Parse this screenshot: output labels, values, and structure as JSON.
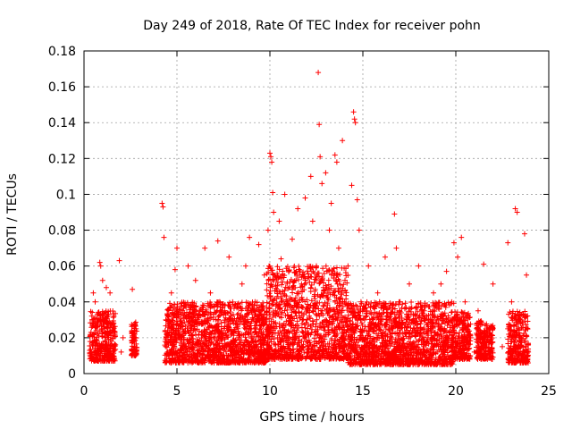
{
  "chart_data": {
    "type": "scatter",
    "title": "Day 249 of 2018, Rate Of TEC Index for receiver pohn",
    "xlabel": "GPS time / hours",
    "ylabel": "ROTI / TECUs",
    "xlim": [
      0,
      25
    ],
    "ylim": [
      0,
      0.18
    ],
    "x_ticks": [
      0,
      5,
      10,
      15,
      20,
      25
    ],
    "x_tick_labels": [
      "0",
      "5",
      "10",
      "15",
      "20",
      "25"
    ],
    "y_ticks": [
      0,
      0.02,
      0.04,
      0.06,
      0.08,
      0.1,
      0.12,
      0.14,
      0.16,
      0.18
    ],
    "y_tick_labels": [
      "0",
      "0.02",
      "0.04",
      "0.06",
      "0.08",
      "0.1",
      "0.12",
      "0.14",
      "0.16",
      "0.18"
    ],
    "grid": true,
    "marker": "+",
    "series_color": "#ff0000",
    "series": [
      {
        "name": "ROTI",
        "points": [
          [
            0.4,
            0.012
          ],
          [
            0.5,
            0.045
          ],
          [
            0.55,
            0.02
          ],
          [
            0.6,
            0.04
          ],
          [
            0.7,
            0.018
          ],
          [
            0.8,
            0.03
          ],
          [
            0.85,
            0.062
          ],
          [
            0.9,
            0.06
          ],
          [
            0.95,
            0.025
          ],
          [
            1.0,
            0.052
          ],
          [
            1.1,
            0.015
          ],
          [
            1.2,
            0.048
          ],
          [
            1.3,
            0.022
          ],
          [
            1.4,
            0.045
          ],
          [
            1.5,
            0.01
          ],
          [
            1.6,
            0.028
          ],
          [
            1.9,
            0.063
          ],
          [
            2.0,
            0.012
          ],
          [
            2.1,
            0.02
          ],
          [
            2.6,
            0.047
          ],
          [
            2.7,
            0.015
          ],
          [
            2.8,
            0.025
          ],
          [
            4.2,
            0.095
          ],
          [
            4.25,
            0.093
          ],
          [
            4.3,
            0.076
          ],
          [
            4.4,
            0.03
          ],
          [
            4.5,
            0.012
          ],
          [
            4.7,
            0.045
          ],
          [
            4.9,
            0.058
          ],
          [
            5.0,
            0.07
          ],
          [
            5.1,
            0.02
          ],
          [
            5.3,
            0.035
          ],
          [
            5.5,
            0.015
          ],
          [
            5.6,
            0.06
          ],
          [
            5.8,
            0.025
          ],
          [
            6.0,
            0.052
          ],
          [
            6.2,
            0.018
          ],
          [
            6.5,
            0.07
          ],
          [
            6.6,
            0.03
          ],
          [
            6.8,
            0.045
          ],
          [
            7.0,
            0.012
          ],
          [
            7.2,
            0.074
          ],
          [
            7.3,
            0.04
          ],
          [
            7.5,
            0.022
          ],
          [
            7.8,
            0.065
          ],
          [
            8.0,
            0.03
          ],
          [
            8.2,
            0.015
          ],
          [
            8.5,
            0.05
          ],
          [
            8.7,
            0.06
          ],
          [
            8.9,
            0.076
          ],
          [
            9.0,
            0.025
          ],
          [
            9.2,
            0.04
          ],
          [
            9.4,
            0.072
          ],
          [
            9.5,
            0.012
          ],
          [
            9.7,
            0.055
          ],
          [
            9.9,
            0.08
          ],
          [
            10.0,
            0.123
          ],
          [
            10.05,
            0.121
          ],
          [
            10.1,
            0.118
          ],
          [
            10.15,
            0.101
          ],
          [
            10.2,
            0.09
          ],
          [
            10.3,
            0.035
          ],
          [
            10.5,
            0.085
          ],
          [
            10.6,
            0.064
          ],
          [
            10.8,
            0.1
          ],
          [
            11.0,
            0.02
          ],
          [
            11.2,
            0.075
          ],
          [
            11.5,
            0.092
          ],
          [
            11.7,
            0.05
          ],
          [
            11.9,
            0.098
          ],
          [
            12.0,
            0.03
          ],
          [
            12.2,
            0.11
          ],
          [
            12.3,
            0.085
          ],
          [
            12.5,
            0.06
          ],
          [
            12.6,
            0.168
          ],
          [
            12.65,
            0.139
          ],
          [
            12.7,
            0.121
          ],
          [
            12.8,
            0.106
          ],
          [
            12.9,
            0.045
          ],
          [
            13.0,
            0.112
          ],
          [
            13.2,
            0.08
          ],
          [
            13.3,
            0.095
          ],
          [
            13.5,
            0.122
          ],
          [
            13.6,
            0.118
          ],
          [
            13.7,
            0.07
          ],
          [
            13.8,
            0.03
          ],
          [
            13.9,
            0.13
          ],
          [
            14.0,
            0.015
          ],
          [
            14.2,
            0.06
          ],
          [
            14.4,
            0.105
          ],
          [
            14.5,
            0.146
          ],
          [
            14.55,
            0.142
          ],
          [
            14.6,
            0.14
          ],
          [
            14.7,
            0.097
          ],
          [
            14.8,
            0.08
          ],
          [
            14.9,
            0.04
          ],
          [
            15.0,
            0.02
          ],
          [
            15.3,
            0.06
          ],
          [
            15.5,
            0.012
          ],
          [
            15.8,
            0.045
          ],
          [
            16.0,
            0.03
          ],
          [
            16.2,
            0.065
          ],
          [
            16.5,
            0.02
          ],
          [
            16.7,
            0.089
          ],
          [
            16.8,
            0.07
          ],
          [
            17.0,
            0.04
          ],
          [
            17.3,
            0.015
          ],
          [
            17.5,
            0.05
          ],
          [
            17.8,
            0.028
          ],
          [
            18.0,
            0.06
          ],
          [
            18.3,
            0.035
          ],
          [
            18.5,
            0.02
          ],
          [
            18.8,
            0.045
          ],
          [
            19.0,
            0.012
          ],
          [
            19.2,
            0.05
          ],
          [
            19.5,
            0.057
          ],
          [
            19.7,
            0.03
          ],
          [
            19.9,
            0.073
          ],
          [
            20.1,
            0.065
          ],
          [
            20.3,
            0.076
          ],
          [
            20.5,
            0.04
          ],
          [
            20.8,
            0.02
          ],
          [
            21.0,
            0.012
          ],
          [
            21.2,
            0.035
          ],
          [
            21.5,
            0.061
          ],
          [
            21.7,
            0.025
          ],
          [
            22.0,
            0.05
          ],
          [
            22.5,
            0.015
          ],
          [
            22.8,
            0.073
          ],
          [
            23.0,
            0.04
          ],
          [
            23.2,
            0.092
          ],
          [
            23.3,
            0.09
          ],
          [
            23.5,
            0.03
          ],
          [
            23.7,
            0.078
          ],
          [
            23.8,
            0.055
          ],
          [
            23.9,
            0.012
          ]
        ]
      }
    ],
    "dense_band": {
      "description_free": true,
      "segments": [
        {
          "x_from": 0.3,
          "x_to": 1.7,
          "y_low": 0.007,
          "y_high": 0.035
        },
        {
          "x_from": 2.55,
          "x_to": 2.85,
          "y_low": 0.01,
          "y_high": 0.03
        },
        {
          "x_from": 4.35,
          "x_to": 9.8,
          "y_low": 0.006,
          "y_high": 0.04
        },
        {
          "x_from": 9.8,
          "x_to": 14.2,
          "y_low": 0.008,
          "y_high": 0.06
        },
        {
          "x_from": 14.2,
          "x_to": 19.9,
          "y_low": 0.005,
          "y_high": 0.04
        },
        {
          "x_from": 19.9,
          "x_to": 20.8,
          "y_low": 0.008,
          "y_high": 0.035
        },
        {
          "x_from": 21.1,
          "x_to": 22.0,
          "y_low": 0.008,
          "y_high": 0.03
        },
        {
          "x_from": 22.8,
          "x_to": 23.9,
          "y_low": 0.006,
          "y_high": 0.035
        }
      ]
    }
  }
}
